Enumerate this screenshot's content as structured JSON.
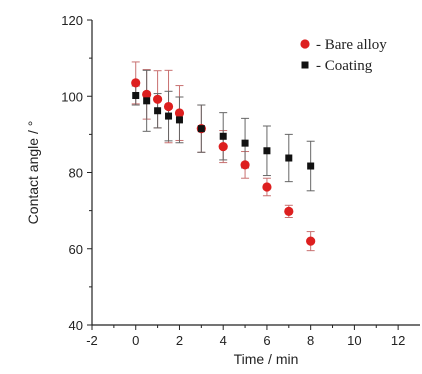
{
  "chart_data": {
    "type": "scatter",
    "xlabel": "Time / min",
    "ylabel": "Contact angle / °",
    "xlim": [
      -2,
      13
    ],
    "ylim": [
      40,
      120
    ],
    "xticks": [
      -2,
      0,
      2,
      4,
      6,
      8,
      10,
      12
    ],
    "yticks": [
      40,
      60,
      80,
      100,
      120
    ],
    "legend_position": "top-right",
    "grid": false,
    "series": [
      {
        "name": "- Bare alloy",
        "marker": "circle",
        "color": "#dd1f1f",
        "error_color": "#c87070",
        "points": [
          {
            "x": 0,
            "y": 103.5,
            "err": 5.5
          },
          {
            "x": 0.5,
            "y": 100.5,
            "err": 6.5
          },
          {
            "x": 1,
            "y": 99.2,
            "err": 7.5
          },
          {
            "x": 1.5,
            "y": 97.3,
            "err": 9.5
          },
          {
            "x": 2,
            "y": 95.6,
            "err": 7.2
          },
          {
            "x": 3,
            "y": 91.5,
            "err": 6.2
          },
          {
            "x": 4,
            "y": 86.8,
            "err": 4.2
          },
          {
            "x": 5,
            "y": 82.0,
            "err": 3.5
          },
          {
            "x": 6,
            "y": 76.2,
            "err": 2.3
          },
          {
            "x": 7,
            "y": 69.8,
            "err": 1.6
          },
          {
            "x": 8,
            "y": 62.0,
            "err": 2.5
          }
        ]
      },
      {
        "name": "- Coating",
        "marker": "square",
        "color": "#111111",
        "error_color": "#666666",
        "points": [
          {
            "x": 0,
            "y": 100.2,
            "err": 2.5
          },
          {
            "x": 0.5,
            "y": 98.8,
            "err": 8.0
          },
          {
            "x": 1,
            "y": 96.2,
            "err": 4.5
          },
          {
            "x": 1.5,
            "y": 94.8,
            "err": 6.5
          },
          {
            "x": 2,
            "y": 93.8,
            "err": 6.0
          },
          {
            "x": 3,
            "y": 91.5,
            "err": 6.2
          },
          {
            "x": 4,
            "y": 89.5,
            "err": 6.2
          },
          {
            "x": 5,
            "y": 87.7,
            "err": 6.5
          },
          {
            "x": 6,
            "y": 85.7,
            "err": 6.5
          },
          {
            "x": 7,
            "y": 83.8,
            "err": 6.2
          },
          {
            "x": 8,
            "y": 81.7,
            "err": 6.5
          }
        ]
      }
    ]
  }
}
